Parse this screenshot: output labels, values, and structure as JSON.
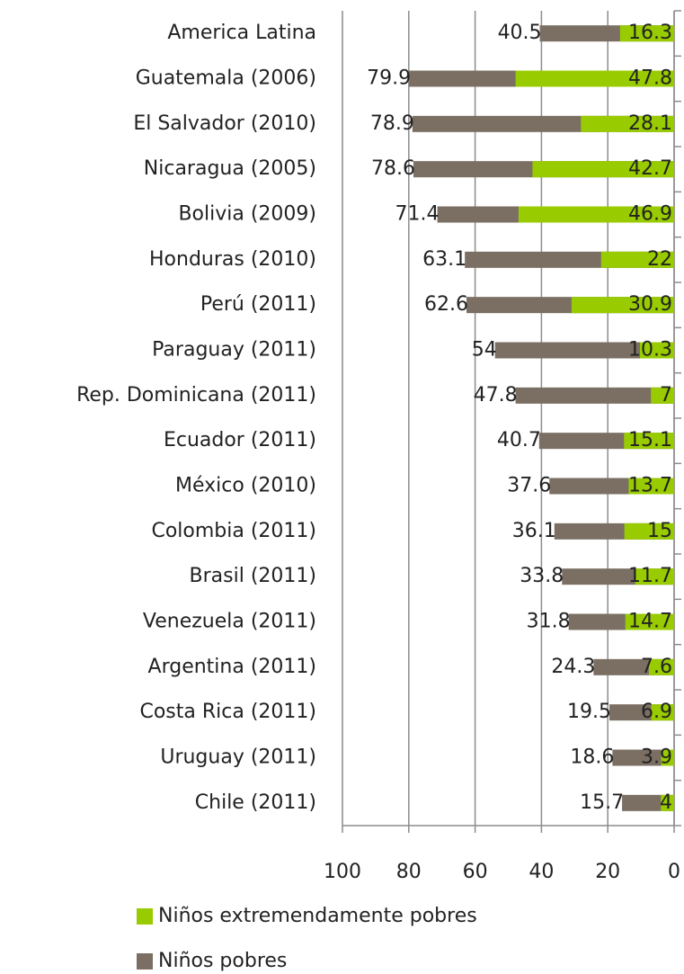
{
  "chart_data": {
    "type": "bar",
    "orientation": "horizontal",
    "overlap": true,
    "categories": [
      "America Latina",
      "Guatemala (2006)",
      "El Salvador (2010)",
      "Nicaragua (2005)",
      "Bolivia (2009)",
      "Honduras (2010)",
      "Perú (2011)",
      "Paraguay (2011)",
      "Rep. Dominicana (2011)",
      "Ecuador (2011)",
      "México (2010)",
      "Colombia (2011)",
      "Brasil (2011)",
      "Venezuela (2011)",
      "Argentina (2011)",
      "Costa Rica (2011)",
      "Uruguay (2011)",
      "Chile (2011)"
    ],
    "series": [
      {
        "name": "Niños pobres",
        "color": "#7b6f63",
        "values": [
          40.5,
          79.9,
          78.9,
          78.6,
          71.4,
          63.1,
          62.6,
          54,
          47.8,
          40.7,
          37.6,
          36.1,
          33.8,
          31.8,
          24.3,
          19.5,
          18.6,
          15.7
        ]
      },
      {
        "name": "Niños extremendamente pobres",
        "color": "#99cc00",
        "values": [
          16.3,
          47.8,
          28.1,
          42.7,
          46.9,
          22,
          30.9,
          10.3,
          7,
          15.1,
          13.7,
          15,
          11.7,
          14.7,
          7.6,
          6.9,
          3.9,
          4
        ]
      }
    ],
    "xlim": [
      100,
      0
    ],
    "xticks": [
      100,
      80,
      60,
      40,
      20,
      0
    ],
    "grid": true
  }
}
